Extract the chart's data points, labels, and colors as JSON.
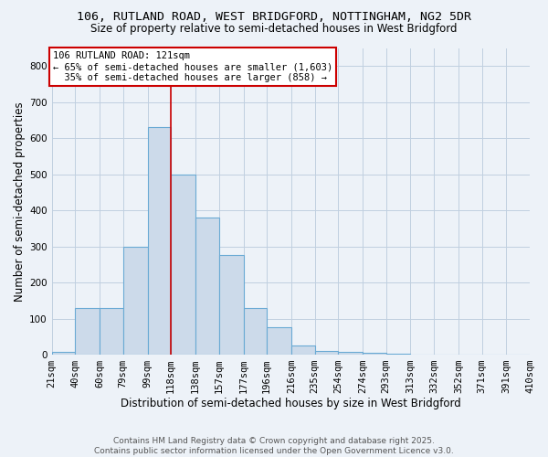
{
  "title_line1": "106, RUTLAND ROAD, WEST BRIDGFORD, NOTTINGHAM, NG2 5DR",
  "title_line2": "Size of property relative to semi-detached houses in West Bridgford",
  "xlabel": "Distribution of semi-detached houses by size in West Bridgford",
  "ylabel": "Number of semi-detached properties",
  "footer_line1": "Contains HM Land Registry data © Crown copyright and database right 2025.",
  "footer_line2": "Contains public sector information licensed under the Open Government Licence v3.0.",
  "bin_labels": [
    "21sqm",
    "40sqm",
    "60sqm",
    "79sqm",
    "99sqm",
    "118sqm",
    "138sqm",
    "157sqm",
    "177sqm",
    "196sqm",
    "216sqm",
    "235sqm",
    "254sqm",
    "274sqm",
    "293sqm",
    "313sqm",
    "332sqm",
    "352sqm",
    "371sqm",
    "391sqm",
    "410sqm"
  ],
  "bin_edges": [
    21,
    40,
    60,
    79,
    99,
    118,
    138,
    157,
    177,
    196,
    216,
    235,
    254,
    274,
    293,
    313,
    332,
    352,
    371,
    391,
    410
  ],
  "bar_values": [
    8,
    130,
    130,
    300,
    630,
    500,
    380,
    275,
    130,
    75,
    25,
    10,
    8,
    5,
    3,
    0,
    0,
    0,
    0,
    0
  ],
  "bar_color": "#ccdaea",
  "bar_edge_color": "#6aaad4",
  "highlight_value": 118,
  "highlight_line_color": "#cc0000",
  "annotation_line1": "106 RUTLAND ROAD: 121sqm",
  "annotation_line2": "← 65% of semi-detached houses are smaller (1,603)",
  "annotation_line3": "  35% of semi-detached houses are larger (858) →",
  "annotation_box_color": "#ffffff",
  "annotation_box_edge": "#cc0000",
  "ylim": [
    0,
    850
  ],
  "yticks": [
    0,
    100,
    200,
    300,
    400,
    500,
    600,
    700,
    800
  ],
  "grid_color": "#c0cfe0",
  "bg_color": "#edf2f8",
  "title1_fontsize": 9.5,
  "title2_fontsize": 8.5,
  "tick_fontsize": 7.5,
  "ylabel_fontsize": 8.5,
  "xlabel_fontsize": 8.5,
  "footer_fontsize": 6.5
}
